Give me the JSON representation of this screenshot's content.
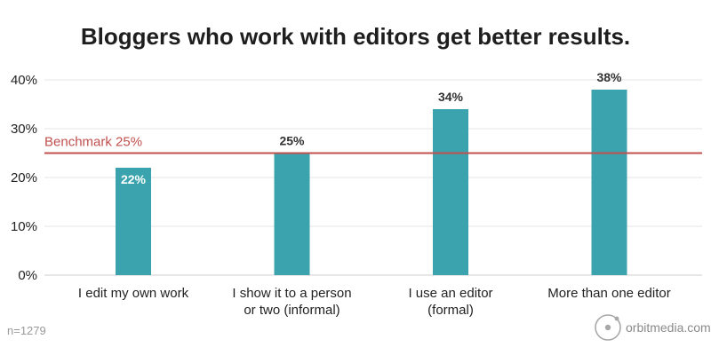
{
  "chart_data": {
    "type": "bar",
    "title": "Bloggers who work with editors get better results.",
    "categories": [
      [
        "I edit my own work"
      ],
      [
        "I show it to a person",
        "or two (informal)"
      ],
      [
        "I use an editor",
        "(formal)"
      ],
      [
        "More than one editor"
      ]
    ],
    "values": [
      22,
      25,
      34,
      38
    ],
    "value_labels": [
      "22%",
      "25%",
      "34%",
      "38%"
    ],
    "ylim": [
      0,
      40
    ],
    "yticks": [
      0,
      10,
      20,
      30,
      40
    ],
    "ytick_labels": [
      "0%",
      "10%",
      "20%",
      "30%",
      "40%"
    ],
    "xlabel": "",
    "ylabel": "",
    "grid": true,
    "benchmark": {
      "label": "Benchmark 25%",
      "value": 25,
      "color": "#c0504d"
    },
    "bar_color": "#3ba3ad",
    "note": "n=1279"
  },
  "brand": {
    "text": "orbitmedia.com"
  }
}
